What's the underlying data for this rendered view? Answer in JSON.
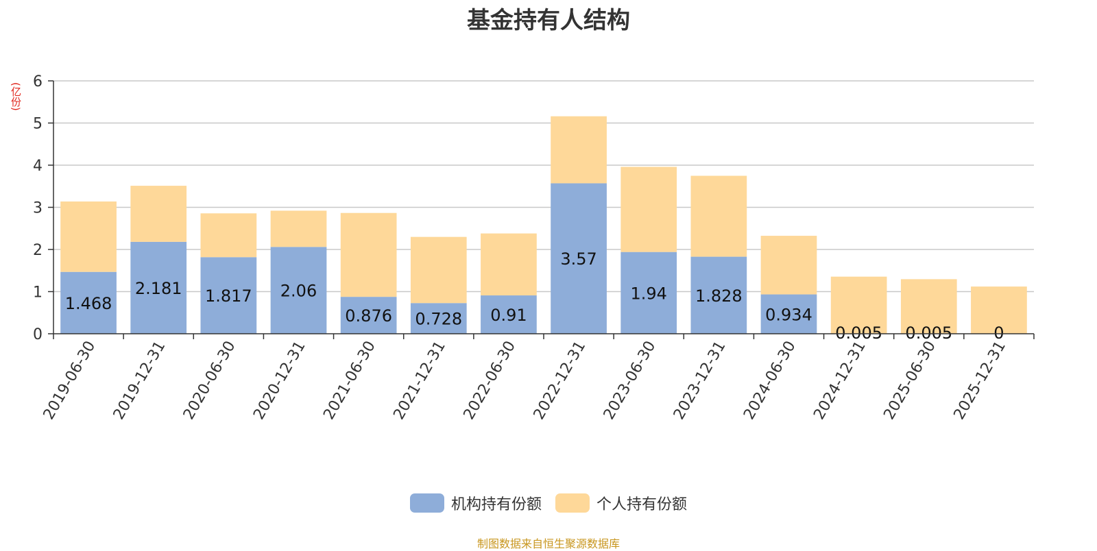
{
  "chart_data": {
    "type": "bar",
    "stacked": true,
    "title": "基金持有人结构",
    "ylabel": "(亿份)",
    "ylim": [
      0,
      6
    ],
    "yticks": [
      "0",
      "1",
      "2",
      "3",
      "4",
      "5",
      "6"
    ],
    "grid": true,
    "legend_position": "bottom",
    "categories": [
      "2019-06-30",
      "2019-12-31",
      "2020-06-30",
      "2020-12-31",
      "2021-06-30",
      "2021-12-31",
      "2022-06-30",
      "2022-12-31",
      "2023-06-30",
      "2023-12-31",
      "2024-06-30",
      "2024-12-31",
      "2025-06-30",
      "2025-12-31"
    ],
    "series": [
      {
        "name": "机构持有份额",
        "color": "#8eadd9",
        "values": [
          1.468,
          2.181,
          1.817,
          2.06,
          0.876,
          0.728,
          0.91,
          3.57,
          1.94,
          1.828,
          0.934,
          0.005,
          0.005,
          0
        ],
        "labels": [
          "1.468",
          "2.181",
          "1.817",
          "2.06",
          "0.876",
          "0.728",
          "0.91",
          "3.57",
          "1.94",
          "1.828",
          "0.934",
          "0.005",
          "0.005",
          "0"
        ]
      },
      {
        "name": "个人持有份额",
        "color": "#fed899",
        "values": [
          1.67,
          1.33,
          1.04,
          0.86,
          1.99,
          1.57,
          1.47,
          1.59,
          2.02,
          1.92,
          1.39,
          1.35,
          1.29,
          1.12
        ]
      }
    ]
  },
  "footer": {
    "source": "制图数据来自恒生聚源数据库"
  }
}
